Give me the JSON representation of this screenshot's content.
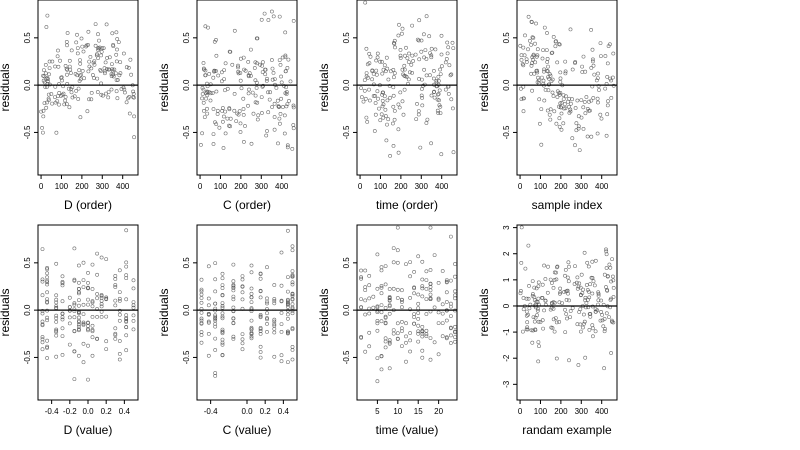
{
  "chart_data": [
    {
      "type": "scatter",
      "xlabel": "D (order)",
      "ylabel": "residuals",
      "xlim": [
        -15,
        475
      ],
      "ylim": [
        -0.95,
        0.9
      ],
      "xticks": [
        0,
        100,
        200,
        300,
        400
      ],
      "xtick_labels": [
        "0",
        "100",
        "200",
        "300",
        "400"
      ],
      "yticks": [
        -0.5,
        0,
        0.5
      ],
      "ytick_labels": [
        "-0.5",
        "0.0",
        "0.5"
      ],
      "hline": 0,
      "grid": false,
      "pattern": "index",
      "shape": "arch",
      "noise": 0.22,
      "n": 200,
      "seed": 11
    },
    {
      "type": "scatter",
      "xlabel": "C (order)",
      "ylabel": "residuals",
      "xlim": [
        -15,
        475
      ],
      "ylim": [
        -0.95,
        0.9
      ],
      "xticks": [
        0,
        100,
        200,
        300,
        400
      ],
      "xtick_labels": [
        "0",
        "100",
        "200",
        "300",
        "400"
      ],
      "yticks": [
        -0.5,
        0,
        0.5
      ],
      "ytick_labels": [
        "-0.5",
        "0.0",
        "0.5"
      ],
      "hline": 0,
      "grid": false,
      "pattern": "index",
      "shape": "flat",
      "noise": 0.3,
      "n": 200,
      "seed": 23
    },
    {
      "type": "scatter",
      "xlabel": "time (order)",
      "ylabel": "residuals",
      "xlim": [
        -15,
        475
      ],
      "ylim": [
        -0.95,
        0.9
      ],
      "xticks": [
        0,
        100,
        200,
        300,
        400
      ],
      "xtick_labels": [
        "0",
        "100",
        "200",
        "300",
        "400"
      ],
      "yticks": [
        -0.5,
        0,
        0.5
      ],
      "ytick_labels": [
        "-0.5",
        "0.0",
        "0.5"
      ],
      "hline": 0,
      "grid": false,
      "pattern": "index",
      "shape": "flat",
      "noise": 0.3,
      "n": 200,
      "seed": 37
    },
    {
      "type": "scatter",
      "xlabel": "sample index",
      "ylabel": "residuals",
      "xlim": [
        -15,
        475
      ],
      "ylim": [
        -0.95,
        0.9
      ],
      "xticks": [
        0,
        100,
        200,
        300,
        400
      ],
      "xtick_labels": [
        "0",
        "100",
        "200",
        "300",
        "400"
      ],
      "yticks": [
        -0.5,
        0,
        0.5
      ],
      "ytick_labels": [
        "-0.5",
        "0.0",
        "0.5"
      ],
      "hline": 0,
      "grid": false,
      "pattern": "index",
      "shape": "wave",
      "noise": 0.25,
      "n": 200,
      "seed": 51
    },
    {
      "type": "scatter",
      "xlabel": "D (value)",
      "ylabel": "residuals",
      "xlim": [
        -0.55,
        0.55
      ],
      "ylim": [
        -0.95,
        0.9
      ],
      "xticks": [
        -0.4,
        -0.2,
        0,
        0.2,
        0.4
      ],
      "xtick_labels": [
        "-0.4",
        "-0.2",
        "0.0",
        "0.2",
        "0.4"
      ],
      "yticks": [
        -0.5,
        0,
        0.5
      ],
      "ytick_labels": [
        "-0.5",
        "0.0",
        "0.5"
      ],
      "hline": 0,
      "grid": false,
      "pattern": "strips",
      "strips": [
        -0.5,
        -0.45,
        -0.35,
        -0.28,
        -0.2,
        -0.15,
        -0.1,
        -0.05,
        0.0,
        0.05,
        0.1,
        0.15,
        0.2,
        0.3,
        0.35,
        0.42,
        0.5
      ],
      "noise": 0.28,
      "n": 200,
      "seed": 63
    },
    {
      "type": "scatter",
      "xlabel": "C (value)",
      "ylabel": "residuals",
      "xlim": [
        -0.55,
        0.55
      ],
      "ylim": [
        -0.95,
        0.9
      ],
      "xticks": [
        -0.4,
        0,
        0.2,
        0.4
      ],
      "xtick_labels": [
        "-0.4",
        "0.0",
        "0.2",
        "0.4"
      ],
      "yticks": [
        -0.5,
        0,
        0.5
      ],
      "ytick_labels": [
        "-0.5",
        "0.0",
        "0.5"
      ],
      "hline": 0,
      "grid": false,
      "pattern": "strips",
      "strips": [
        -0.5,
        -0.42,
        -0.35,
        -0.27,
        -0.15,
        -0.05,
        0.05,
        0.15,
        0.22,
        0.3,
        0.38,
        0.45,
        0.5
      ],
      "noise": 0.3,
      "n": 200,
      "seed": 77
    },
    {
      "type": "scatter",
      "xlabel": "time (value)",
      "ylabel": "residuals",
      "xlim": [
        0,
        24.5
      ],
      "ylim": [
        -0.95,
        0.9
      ],
      "xticks": [
        5,
        10,
        15,
        20
      ],
      "xtick_labels": [
        "5",
        "10",
        "15",
        "20"
      ],
      "yticks": [
        -0.5,
        0,
        0.5
      ],
      "ytick_labels": [
        "-0.5",
        "0.0",
        "0.5"
      ],
      "hline": 0,
      "grid": false,
      "pattern": "strips",
      "strips": [
        1,
        2,
        3,
        4,
        5,
        6,
        7,
        8,
        9,
        10,
        11,
        12,
        13,
        14,
        15,
        16,
        17,
        18,
        19,
        20,
        21,
        22,
        23,
        24
      ],
      "noise": 0.3,
      "n": 200,
      "seed": 89
    },
    {
      "type": "scatter",
      "xlabel": "randam example",
      "ylabel": "residuals",
      "xlim": [
        -15,
        475
      ],
      "ylim": [
        -3.6,
        3.1
      ],
      "xticks": [
        0,
        100,
        200,
        300,
        400
      ],
      "xtick_labels": [
        "0",
        "100",
        "200",
        "300",
        "400"
      ],
      "yticks": [
        -3,
        -2,
        -1,
        0,
        1,
        2,
        3
      ],
      "ytick_labels": [
        "-3",
        "-2",
        "-1",
        "0",
        "1",
        "2",
        "3"
      ],
      "hline": 0,
      "grid": false,
      "pattern": "index",
      "shape": "flat",
      "noise": 1.0,
      "n": 220,
      "seed": 97
    }
  ]
}
